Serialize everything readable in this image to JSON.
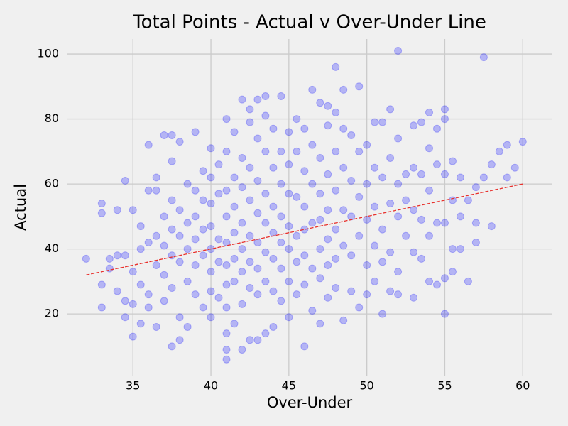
{
  "chart_data": {
    "type": "scatter",
    "title": "Total Points - Actual v Over-Under Line",
    "xlabel": "Over-Under",
    "ylabel": "Actual",
    "xlim": [
      30.8,
      61.9
    ],
    "ylim": [
      0.8,
      104.6
    ],
    "xticks": [
      35,
      40,
      45,
      50,
      55,
      60
    ],
    "yticks": [
      20,
      40,
      60,
      80,
      100
    ],
    "grid": true,
    "color": "#0000ff",
    "opacity": 0.25,
    "x": [
      32,
      33,
      33,
      33,
      33,
      33.5,
      33.5,
      34,
      34,
      34,
      34.5,
      34.5,
      34.5,
      34.5,
      35,
      35,
      35,
      35,
      35.5,
      35.5,
      35.5,
      35.5,
      36,
      36,
      36,
      36,
      36,
      36.5,
      36.5,
      36.5,
      36.5,
      36.5,
      37,
      37,
      37,
      37,
      37,
      37.5,
      37.5,
      37.5,
      37.5,
      37.5,
      37.5,
      37.5,
      38,
      38,
      38,
      38,
      38,
      38,
      38.5,
      38.5,
      38.5,
      38.5,
      38.5,
      39,
      39,
      39,
      39,
      39,
      39,
      39.5,
      39.5,
      39.5,
      39.5,
      39.5,
      40,
      40,
      40,
      40,
      40,
      40,
      40,
      40,
      40.5,
      40.5,
      40.5,
      40.5,
      40.5,
      41,
      41,
      41,
      41,
      41,
      41,
      41,
      41,
      41,
      41,
      41,
      41.5,
      41.5,
      41.5,
      41.5,
      41.5,
      41.5,
      41.5,
      42,
      42,
      42,
      42,
      42,
      42,
      42,
      42,
      42.5,
      42.5,
      42.5,
      42.5,
      42.5,
      42.5,
      42.5,
      42.5,
      43,
      43,
      43,
      43,
      43,
      43,
      43,
      43,
      43.5,
      43.5,
      43.5,
      43.5,
      43.5,
      43.5,
      43.5,
      43.5,
      44,
      44,
      44,
      44,
      44,
      44,
      44,
      44.5,
      44.5,
      44.5,
      44.5,
      44.5,
      44.5,
      44.5,
      45,
      45,
      45,
      45,
      45,
      45,
      45,
      45.5,
      45.5,
      45.5,
      45.5,
      45.5,
      45.5,
      46,
      46,
      46,
      46,
      46,
      46,
      46,
      46.5,
      46.5,
      46.5,
      46.5,
      46.5,
      46.5,
      47,
      47,
      47,
      47,
      47,
      47,
      47,
      47.5,
      47.5,
      47.5,
      47.5,
      47.5,
      47.5,
      47.5,
      48,
      48,
      48,
      48,
      48,
      48,
      48,
      48.5,
      48.5,
      48.5,
      48.5,
      48.5,
      48.5,
      49,
      49,
      49,
      49,
      49,
      49.5,
      49.5,
      49.5,
      49.5,
      49.5,
      50,
      50,
      50,
      50,
      50,
      50.5,
      50.5,
      50.5,
      50.5,
      50.5,
      51,
      51,
      51,
      51,
      51,
      51.5,
      51.5,
      51.5,
      51.5,
      51.5,
      52,
      52,
      52,
      52,
      52,
      52,
      52.5,
      52.5,
      52.5,
      53,
      53,
      53,
      53,
      53,
      53.5,
      53.5,
      53.5,
      53.5,
      54,
      54,
      54,
      54,
      54,
      54.5,
      54.5,
      54.5,
      54.5,
      55,
      55,
      55,
      55,
      55,
      55,
      55.5,
      55.5,
      55.5,
      55.5,
      56,
      56,
      56,
      56.5,
      56.5,
      57,
      57,
      57,
      57.5,
      57.5,
      58,
      58,
      58.5,
      59,
      59,
      59.5,
      60
    ],
    "values": [
      37,
      54,
      51,
      29,
      22,
      34,
      37,
      38,
      27,
      52,
      61,
      38,
      24,
      19,
      13,
      23,
      52,
      33,
      47,
      40,
      29,
      17,
      72,
      58,
      42,
      26,
      22,
      62,
      58,
      44,
      35,
      16,
      75,
      50,
      41,
      32,
      24,
      75,
      67,
      55,
      46,
      38,
      28,
      10,
      73,
      52,
      44,
      36,
      19,
      12,
      60,
      48,
      40,
      30,
      16,
      76,
      58,
      50,
      43,
      35,
      26,
      64,
      55,
      46,
      38,
      22,
      71,
      62,
      54,
      47,
      40,
      33,
      27,
      19,
      66,
      57,
      43,
      36,
      25,
      80,
      70,
      58,
      50,
      42,
      35,
      29,
      22,
      14,
      9,
      6,
      76,
      62,
      53,
      45,
      37,
      30,
      17,
      86,
      68,
      59,
      48,
      40,
      33,
      23,
      9,
      83,
      79,
      65,
      55,
      44,
      36,
      28,
      12,
      86,
      74,
      61,
      51,
      42,
      34,
      26,
      12,
      87,
      81,
      70,
      57,
      48,
      39,
      30,
      14,
      77,
      65,
      53,
      45,
      37,
      27,
      16,
      87,
      70,
      60,
      50,
      42,
      34,
      24,
      76,
      66,
      57,
      47,
      40,
      30,
      19,
      80,
      70,
      56,
      44,
      36,
      26,
      77,
      64,
      53,
      46,
      38,
      29,
      10,
      89,
      72,
      60,
      48,
      34,
      21,
      85,
      68,
      57,
      49,
      40,
      31,
      17,
      84,
      78,
      63,
      52,
      43,
      35,
      25,
      96,
      82,
      70,
      58,
      46,
      37,
      28,
      89,
      77,
      65,
      52,
      41,
      18,
      75,
      61,
      50,
      38,
      27,
      90,
      70,
      56,
      44,
      22,
      72,
      60,
      49,
      35,
      26,
      79,
      65,
      53,
      41,
      30,
      79,
      62,
      46,
      36,
      20,
      83,
      68,
      54,
      39,
      27,
      101,
      74,
      60,
      50,
      33,
      26,
      63,
      55,
      44,
      78,
      65,
      52,
      39,
      25,
      79,
      63,
      49,
      37,
      82,
      71,
      58,
      44,
      30,
      77,
      66,
      48,
      29,
      83,
      80,
      63,
      48,
      31,
      20,
      67,
      55,
      40,
      33,
      62,
      50,
      40,
      55,
      30,
      59,
      48,
      42,
      99,
      62,
      66,
      47,
      70,
      72,
      62,
      65,
      73
    ],
    "trend_line": {
      "x": [
        32,
        60
      ],
      "values": [
        32,
        60
      ],
      "color": "#e8302c",
      "dashed": true
    }
  }
}
